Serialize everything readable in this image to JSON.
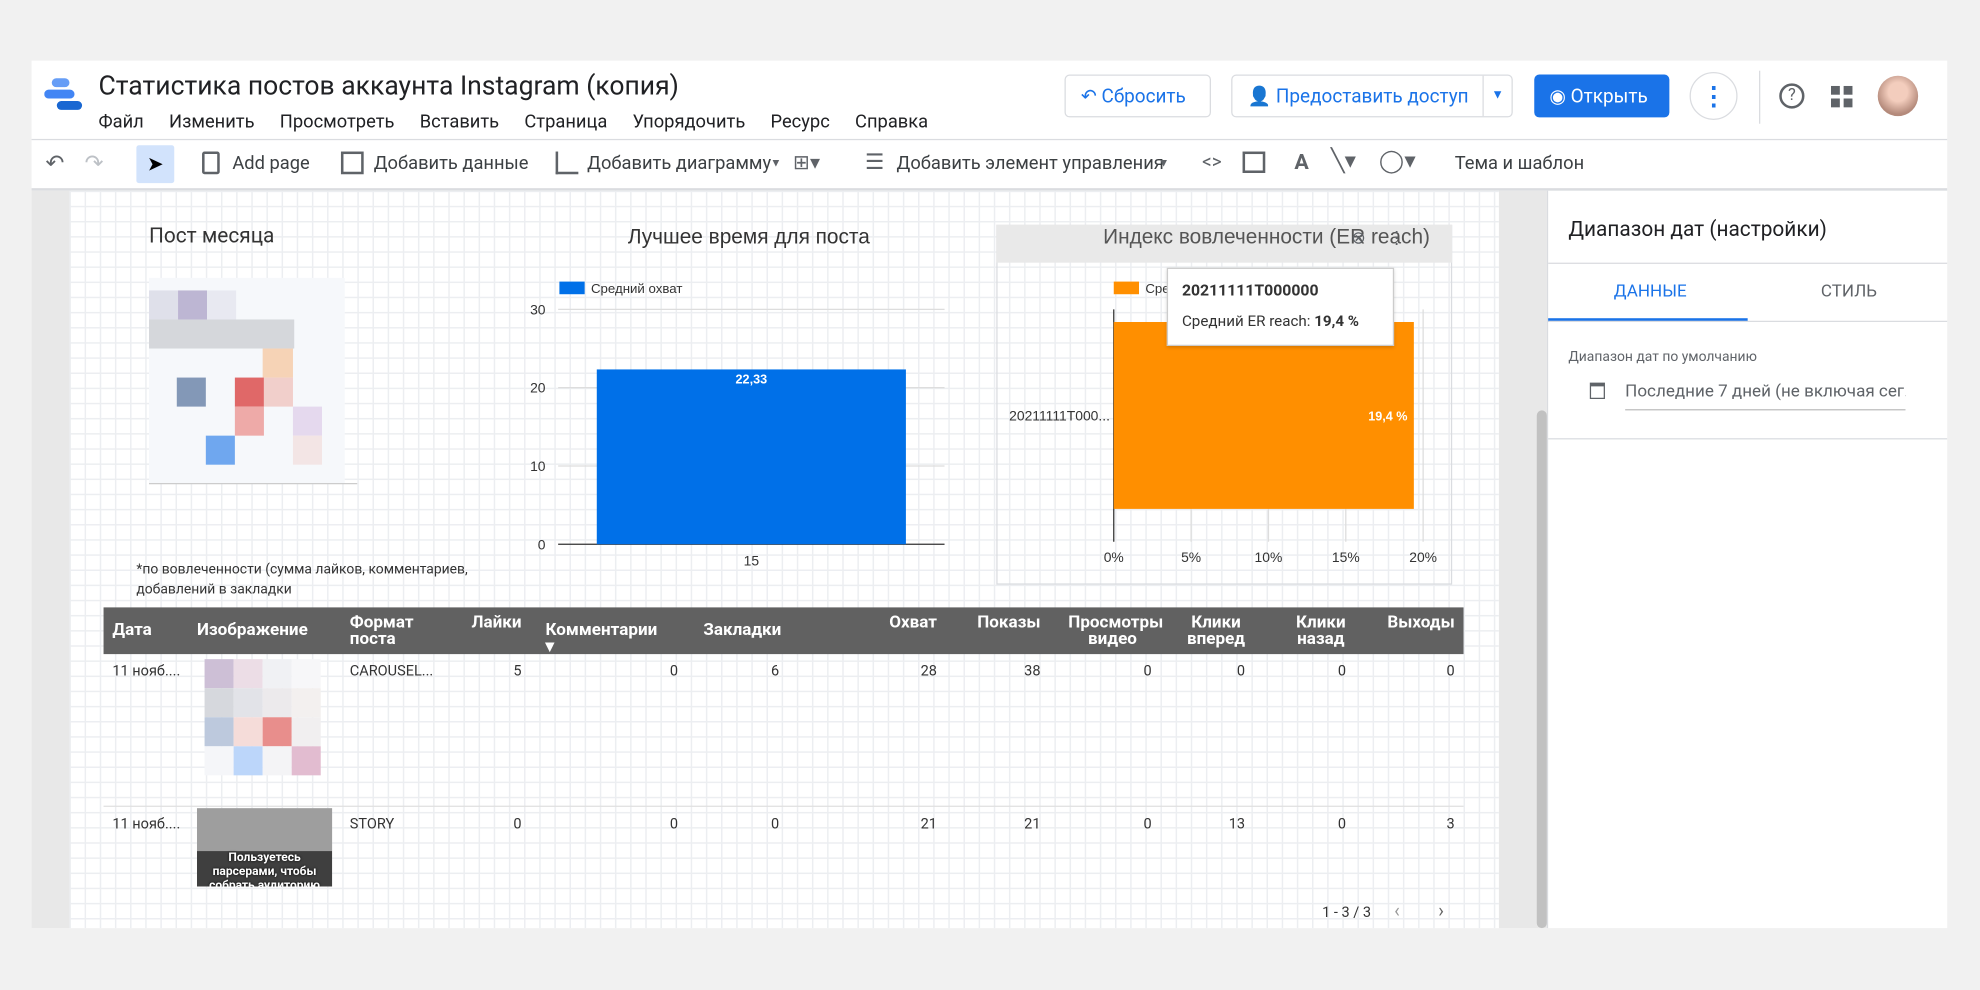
{
  "header": {
    "title": "Статистика постов аккаунта Instagram  (копия)",
    "menu": [
      "Файл",
      "Изменить",
      "Просмотреть",
      "Вставить",
      "Страница",
      "Упорядочить",
      "Ресурс",
      "Справка"
    ],
    "reset": "Сбросить",
    "share": "Предоставить доступ",
    "open": "Открыть"
  },
  "toolbar": {
    "add_page": "Add page",
    "add_data": "Добавить данные",
    "add_chart": "Добавить диаграмму",
    "add_control": "Добавить элемент управления",
    "theme": "Тема и шаблон"
  },
  "widgets": {
    "post_title": "Пост месяца",
    "note": "*по вовлеченности (сумма лайков, комментариев, добавлений в закладки"
  },
  "chart_data": [
    {
      "type": "bar",
      "title": "Лучшее время для поста",
      "categories": [
        "15"
      ],
      "series": [
        {
          "name": "Средний охват",
          "color": "#0070e8",
          "values": [
            22.33
          ],
          "value_labels": [
            "22,33"
          ]
        }
      ],
      "ylim": [
        0,
        30
      ],
      "yticks": [
        0,
        10,
        20,
        30
      ],
      "grid": true,
      "legend": "top-left"
    },
    {
      "type": "hbar",
      "title": "Индекс вовлеченности (ER reach)",
      "categories": [
        "20211111T000..."
      ],
      "series": [
        {
          "name": "Средний ER reach",
          "color": "#ff8f00",
          "values": [
            19.4
          ],
          "value_labels": [
            "19,4 %"
          ]
        }
      ],
      "xlim": [
        0,
        20
      ],
      "xticks": [
        {
          "value": 0,
          "label": "0%"
        },
        {
          "value": 5,
          "label": "5%"
        },
        {
          "value": 10,
          "label": "10%"
        },
        {
          "value": 15,
          "label": "15%"
        },
        {
          "value": 20,
          "label": "20%"
        }
      ],
      "grid": true,
      "legend": "top-left",
      "tooltip": {
        "title": "20211111T000000",
        "label": "Средний ER reach:",
        "value": "19,4 %"
      }
    }
  ],
  "table": {
    "columns": [
      "Дата",
      "Изображение",
      "Формат поста",
      "Лайки",
      "Комментарии",
      "Закладки",
      "Охват",
      "Показы",
      "Просмотры видео",
      "Клики вперед",
      "Клики назад",
      "Выходы"
    ],
    "rows": [
      {
        "date": "11 нояб....",
        "format": "CAROUSEL...",
        "values": [
          5,
          0,
          6,
          28,
          38,
          0,
          0,
          0,
          0
        ]
      },
      {
        "date": "11 нояб....",
        "format": "STORY",
        "image_text": "Пользуетесь парсерами, чтобы собрать аудиторию",
        "values": [
          0,
          0,
          0,
          21,
          21,
          0,
          13,
          0,
          3
        ]
      }
    ],
    "pagination": "1 - 3 / 3"
  },
  "panel": {
    "title": "Диапазон дат (настройки)",
    "tab_data": "ДАННЫЕ",
    "tab_style": "СТИЛЬ",
    "field_label": "Диапазон дат по умолчанию",
    "field_value": "Последние 7 дней (не включая сег..."
  }
}
